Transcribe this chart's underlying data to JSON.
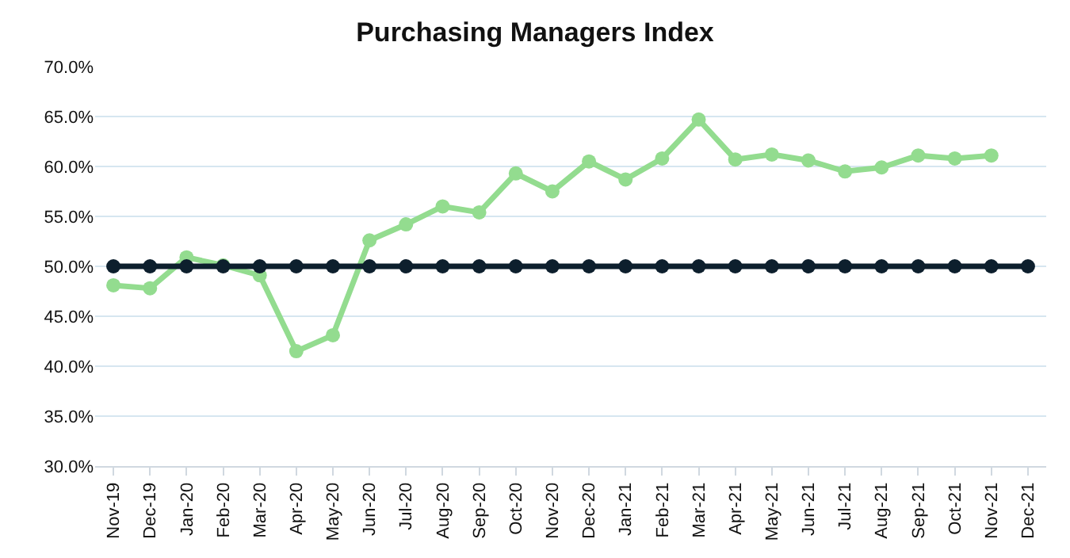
{
  "chart_data": {
    "type": "line",
    "title": "Purchasing Managers Index",
    "categories": [
      "Nov-19",
      "Dec-19",
      "Jan-20",
      "Feb-20",
      "Mar-20",
      "Apr-20",
      "May-20",
      "Jun-20",
      "Jul-20",
      "Aug-20",
      "Sep-20",
      "Oct-20",
      "Nov-20",
      "Dec-20",
      "Jan-21",
      "Feb-21",
      "Mar-21",
      "Apr-21",
      "May-21",
      "Jun-21",
      "Jul-21",
      "Aug-21",
      "Sep-21",
      "Oct-21",
      "Nov-21",
      "Dec-21"
    ],
    "series": [
      {
        "color": "#93dc8f",
        "values": [
          48.1,
          47.8,
          50.9,
          50.1,
          49.1,
          41.5,
          43.1,
          52.6,
          54.2,
          56.0,
          55.4,
          59.3,
          57.5,
          60.5,
          58.7,
          60.8,
          64.7,
          60.7,
          61.2,
          60.6,
          59.5,
          59.9,
          61.1,
          60.8,
          61.1,
          null
        ]
      },
      {
        "color": "#0d1f2d",
        "values": [
          50,
          50,
          50,
          50,
          50,
          50,
          50,
          50,
          50,
          50,
          50,
          50,
          50,
          50,
          50,
          50,
          50,
          50,
          50,
          50,
          50,
          50,
          50,
          50,
          50,
          50
        ]
      }
    ],
    "ylim": [
      30,
      70
    ],
    "yticks": [
      {
        "value": 30,
        "label": "30.0%"
      },
      {
        "value": 35,
        "label": "35.0%"
      },
      {
        "value": 40,
        "label": "40.0%"
      },
      {
        "value": 45,
        "label": "45.0%"
      },
      {
        "value": 50,
        "label": "50.0%"
      },
      {
        "value": 55,
        "label": "55.0%"
      },
      {
        "value": 60,
        "label": "60.0%"
      },
      {
        "value": 65,
        "label": "65.0%"
      },
      {
        "value": 70,
        "label": "70.0%"
      }
    ],
    "grid": "y",
    "marker": "circle",
    "line_style": "solid"
  }
}
